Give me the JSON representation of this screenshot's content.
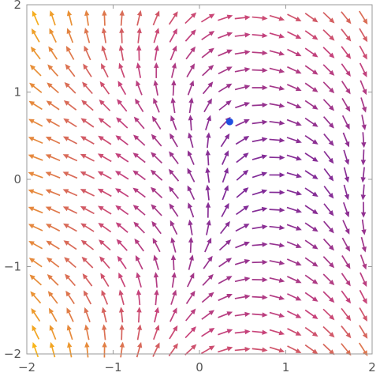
{
  "chart_data": {
    "type": "vector_field",
    "title": "",
    "xlabel": "",
    "ylabel": "",
    "xlim": [
      -2,
      2
    ],
    "ylim": [
      -2,
      2
    ],
    "x_ticks": [
      -2,
      -1,
      0,
      1,
      2
    ],
    "y_ticks": [
      -2,
      -1,
      0,
      1,
      2
    ],
    "x_tick_labels": [
      "−2",
      "−1",
      "0",
      "1",
      "2"
    ],
    "y_tick_labels": [
      "−2",
      "−1",
      "0",
      "1",
      "2"
    ],
    "field": {
      "u": "y*y - x*x + 2*x - 0.3",
      "v": "0.9 - x - y*y*(x-0.5)*0.9"
    },
    "grid_samples": {
      "x_start": -1.9,
      "x_step": 0.2,
      "count_x": 20,
      "y_start": -1.95,
      "y_step": 0.2,
      "count_y": 20
    },
    "color_scale": {
      "low": "#5b1fa8",
      "mid": "#c8437a",
      "high": "#f8b418"
    },
    "highlight_point": {
      "x": 0.35,
      "y": 0.66,
      "color": "#1f4fe0"
    },
    "grid": false
  }
}
